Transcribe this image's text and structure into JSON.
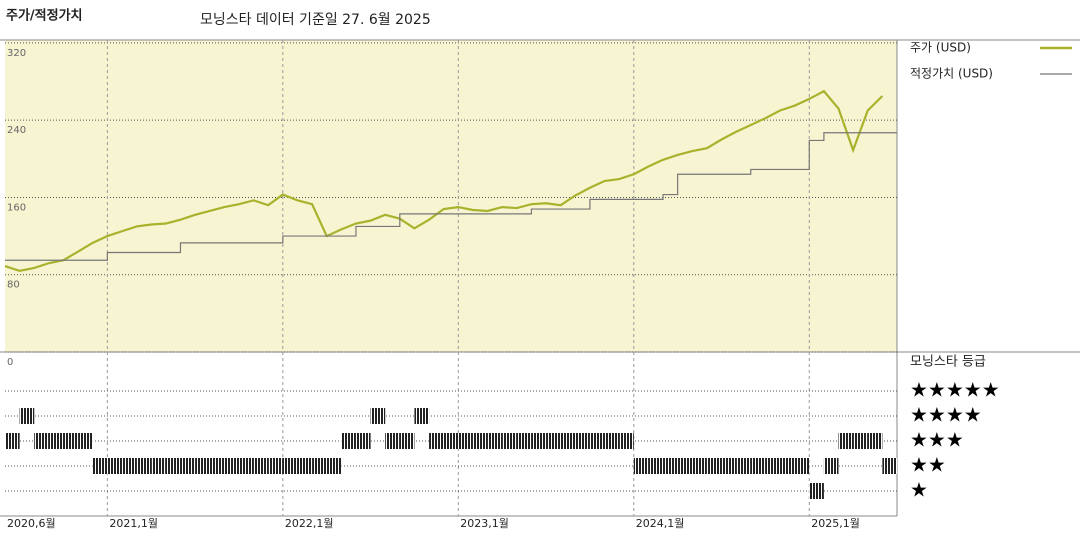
{
  "chart_data": {
    "type": "line",
    "title": "주가/적정가치",
    "subtitle": "모닝스타 데이터 기준일 27. 6월 2025",
    "x": [
      "2020-06",
      "2020-07",
      "2020-08",
      "2020-09",
      "2020-10",
      "2020-11",
      "2020-12",
      "2021-01",
      "2021-02",
      "2021-03",
      "2021-04",
      "2021-05",
      "2021-06",
      "2021-07",
      "2021-08",
      "2021-09",
      "2021-10",
      "2021-11",
      "2021-12",
      "2022-01",
      "2022-02",
      "2022-03",
      "2022-04",
      "2022-05",
      "2022-06",
      "2022-07",
      "2022-08",
      "2022-09",
      "2022-10",
      "2022-11",
      "2022-12",
      "2023-01",
      "2023-02",
      "2023-03",
      "2023-04",
      "2023-05",
      "2023-06",
      "2023-07",
      "2023-08",
      "2023-09",
      "2023-10",
      "2023-11",
      "2023-12",
      "2024-01",
      "2024-02",
      "2024-03",
      "2024-04",
      "2024-05",
      "2024-06",
      "2024-07",
      "2024-08",
      "2024-09",
      "2024-10",
      "2024-11",
      "2024-12",
      "2025-01",
      "2025-02",
      "2025-03",
      "2025-04",
      "2025-05",
      "2025-06"
    ],
    "xlim": [
      "2020-06",
      "2025-07"
    ],
    "xticks": [
      {
        "value": "2020-06",
        "label": "2020,6월"
      },
      {
        "value": "2021-01",
        "label": "2021,1월"
      },
      {
        "value": "2022-01",
        "label": "2022,1월"
      },
      {
        "value": "2023-01",
        "label": "2023,1월"
      },
      {
        "value": "2024-01",
        "label": "2024,1월"
      },
      {
        "value": "2025-01",
        "label": "2025,1월"
      }
    ],
    "ylim": [
      0,
      323
    ],
    "yticks": [
      0,
      80,
      160,
      240,
      320
    ],
    "grid": true,
    "series": [
      {
        "name": "주가 (USD)",
        "color": "#a9b22c",
        "step": false,
        "values": [
          89,
          84,
          87,
          92,
          95,
          104,
          113,
          120,
          125,
          130,
          132,
          133,
          137,
          142,
          146,
          150,
          153,
          157,
          152,
          163,
          157,
          153,
          120,
          127,
          133,
          136,
          142,
          138,
          128,
          137,
          148,
          150,
          147,
          146,
          150,
          149,
          153,
          154,
          152,
          162,
          170,
          177,
          179,
          184,
          192,
          199,
          204,
          208,
          211,
          220,
          228,
          235,
          242,
          250,
          255,
          262,
          270,
          252,
          209,
          250,
          265
        ]
      },
      {
        "name": "적정가치 (USD)",
        "color": "#777777",
        "step": true,
        "values": [
          95,
          95,
          95,
          95,
          95,
          95,
          95,
          103,
          103,
          103,
          103,
          103,
          113,
          113,
          113,
          113,
          113,
          113,
          113,
          120,
          120,
          120,
          120,
          120,
          130,
          130,
          130,
          143,
          143,
          143,
          143,
          143,
          143,
          143,
          143,
          143,
          148,
          148,
          148,
          148,
          158,
          158,
          158,
          158,
          158,
          163,
          184,
          184,
          184,
          184,
          184,
          189,
          189,
          189,
          189,
          219,
          227,
          227,
          227,
          227,
          227
        ]
      }
    ],
    "rating_title": "모닝스타 등급",
    "rating_labels": [
      "★",
      "★★",
      "★★★",
      "★★★★",
      "★★★★★"
    ],
    "ratings": [
      3,
      4,
      3,
      3,
      3,
      3,
      2,
      2,
      2,
      2,
      2,
      2,
      2,
      2,
      2,
      2,
      2,
      2,
      2,
      2,
      2,
      2,
      2,
      3,
      3,
      4,
      3,
      3,
      4,
      3,
      3,
      3,
      3,
      3,
      3,
      3,
      3,
      3,
      3,
      3,
      3,
      3,
      3,
      2,
      2,
      2,
      2,
      2,
      2,
      2,
      2,
      2,
      2,
      2,
      2,
      1,
      2,
      3,
      3,
      3,
      2
    ]
  }
}
